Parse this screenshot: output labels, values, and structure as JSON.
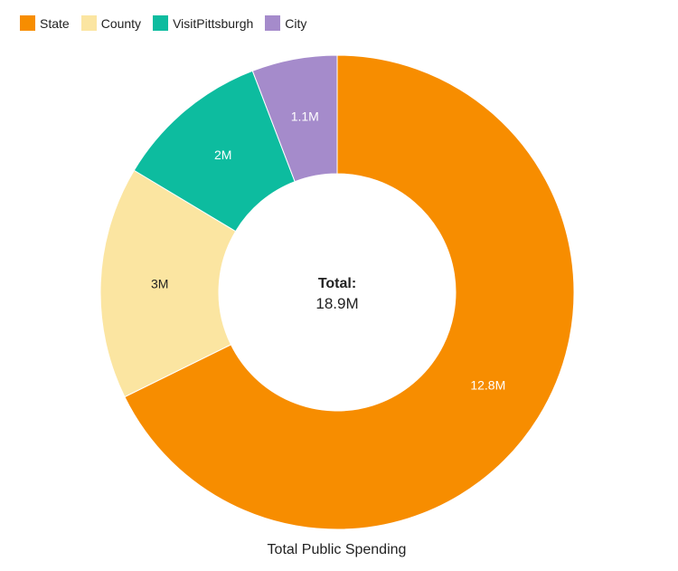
{
  "chart_data": {
    "type": "pie",
    "variant": "donut",
    "title": "Total Public Spending",
    "center_label": "Total:",
    "center_value": "18.9M",
    "legend_position": "top-left",
    "categories": [
      "State",
      "County",
      "VisitPittsburgh",
      "City"
    ],
    "values": [
      12.8,
      3,
      2,
      1.1
    ],
    "value_labels": [
      "12.8M",
      "3M",
      "2M",
      "1.1M"
    ],
    "unit": "M",
    "colors": [
      "#F78D00",
      "#FBE5A1",
      "#0DBC9F",
      "#A58BCB"
    ],
    "label_colors": [
      "#FFFFFF",
      "#222222",
      "#FFFFFF",
      "#FFFFFF"
    ]
  }
}
